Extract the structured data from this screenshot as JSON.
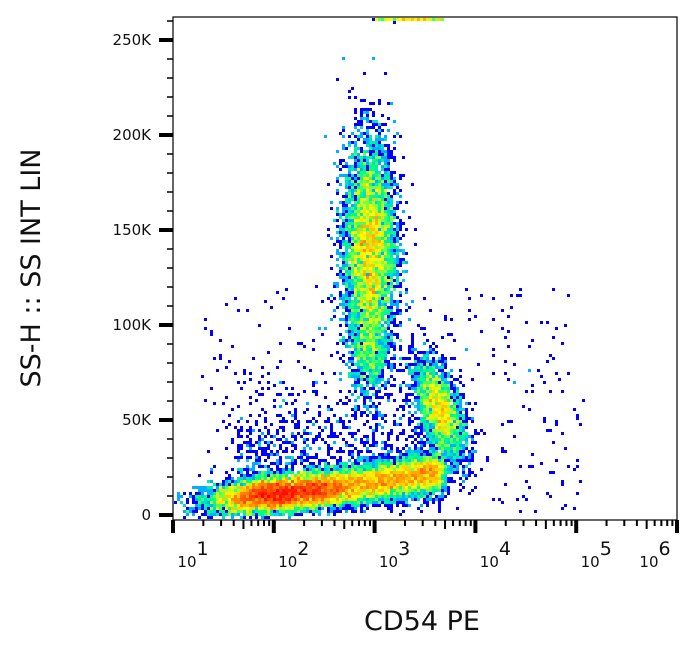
{
  "chart_data": {
    "type": "scatter",
    "subtype": "density dot plot (flow cytometry)",
    "xlabel": "CD54 PE",
    "ylabel": "SS-H :: SS INT LIN",
    "x_scale": "log",
    "xlim": [
      10,
      1000000
    ],
    "ylim": [
      0,
      262000
    ],
    "x_ticks": [
      {
        "value": 10,
        "base": "10",
        "exp": "1"
      },
      {
        "value": 100,
        "base": "10",
        "exp": "2"
      },
      {
        "value": 1000,
        "base": "10",
        "exp": "3"
      },
      {
        "value": 10000,
        "base": "10",
        "exp": "4"
      },
      {
        "value": 100000,
        "base": "10",
        "exp": "5"
      },
      {
        "value": 1000000,
        "base": "10",
        "exp": "6"
      }
    ],
    "y_ticks": [
      {
        "value": 0,
        "label": "0"
      },
      {
        "value": 50000,
        "label": "50K"
      },
      {
        "value": 100000,
        "label": "100K"
      },
      {
        "value": 150000,
        "label": "150K"
      },
      {
        "value": 200000,
        "label": "200K"
      },
      {
        "value": 250000,
        "label": "250K"
      }
    ],
    "color_scale": [
      "#0000ff",
      "#00c8ff",
      "#00ff80",
      "#ffff00",
      "#ff8000",
      "#ff0000"
    ],
    "grid": false,
    "populations": [
      {
        "center_x": 120,
        "center_y": 12000,
        "relative_density": 1.0
      },
      {
        "center_x": 1500,
        "center_y": 20000,
        "relative_density": 0.6
      },
      {
        "center_x": 900,
        "center_y": 140000,
        "relative_density": 0.55
      },
      {
        "center_x": 5000,
        "center_y": 55000,
        "relative_density": 0.3
      }
    ]
  }
}
